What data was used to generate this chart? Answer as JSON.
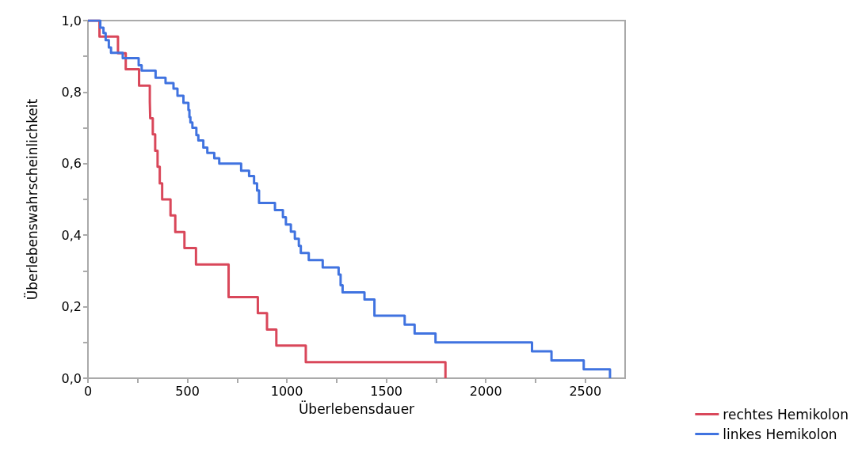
{
  "chart_data": {
    "type": "step",
    "xlabel": "Überlebensdauer",
    "ylabel": "Überlebenswahrscheinlichkeit",
    "xlim": [
      0,
      2700
    ],
    "ylim": [
      0,
      1
    ],
    "xticks": [
      0,
      {
        "value": 250,
        "label": null
      },
      500,
      {
        "value": 750,
        "label": null
      },
      1000,
      {
        "value": 1250,
        "label": null
      },
      1500,
      {
        "value": 1750,
        "label": null
      },
      2000,
      {
        "value": 2250,
        "label": null
      },
      2500
    ],
    "yticks": [
      {
        "value": 0,
        "label": "0,0"
      },
      {
        "value": 0.1,
        "label": null
      },
      {
        "value": 0.2,
        "label": "0,2"
      },
      {
        "value": 0.3,
        "label": null
      },
      {
        "value": 0.4,
        "label": "0,4"
      },
      {
        "value": 0.5,
        "label": null
      },
      {
        "value": 0.6,
        "label": "0,6"
      },
      {
        "value": 0.7,
        "label": null
      },
      {
        "value": 0.8,
        "label": "0,8"
      },
      {
        "value": 0.9,
        "label": null
      },
      {
        "value": 1,
        "label": "1,0"
      }
    ],
    "grid": false,
    "legend": "bottom right",
    "marker": "none",
    "line_style": "solid",
    "series": [
      {
        "name": "rechtes Hemikolon",
        "color": "#d9475a",
        "x": [
          0,
          58,
          151,
          190,
          257,
          311,
          313,
          326,
          338,
          350,
          361,
          373,
          415,
          439,
          485,
          543,
          707,
          854,
          900,
          947,
          1095,
          1797
        ],
        "values": [
          1,
          0.955,
          0.909,
          0.864,
          0.818,
          0.773,
          0.727,
          0.682,
          0.636,
          0.591,
          0.545,
          0.5,
          0.455,
          0.409,
          0.364,
          0.318,
          0.227,
          0.182,
          0.136,
          0.091,
          0.045,
          0
        ]
      },
      {
        "name": "linkes Hemikolon",
        "color": "#4073e0",
        "x": [
          0,
          62,
          78,
          89,
          105,
          116,
          175,
          255,
          270,
          340,
          390,
          430,
          450,
          480,
          505,
          510,
          515,
          525,
          545,
          555,
          580,
          600,
          635,
          660,
          770,
          810,
          835,
          850,
          860,
          940,
          980,
          995,
          1020,
          1040,
          1060,
          1070,
          1110,
          1180,
          1260,
          1270,
          1280,
          1390,
          1440,
          1592,
          1642,
          1747,
          2232,
          2330,
          2492,
          2624
        ],
        "values": [
          1,
          0.98,
          0.965,
          0.945,
          0.925,
          0.91,
          0.895,
          0.875,
          0.86,
          0.84,
          0.825,
          0.81,
          0.79,
          0.77,
          0.75,
          0.73,
          0.715,
          0.7,
          0.68,
          0.665,
          0.645,
          0.63,
          0.615,
          0.6,
          0.58,
          0.565,
          0.545,
          0.525,
          0.49,
          0.47,
          0.45,
          0.43,
          0.41,
          0.39,
          0.37,
          0.35,
          0.33,
          0.31,
          0.29,
          0.26,
          0.24,
          0.22,
          0.175,
          0.15,
          0.125,
          0.1,
          0.075,
          0.05,
          0.025,
          0
        ]
      }
    ]
  }
}
